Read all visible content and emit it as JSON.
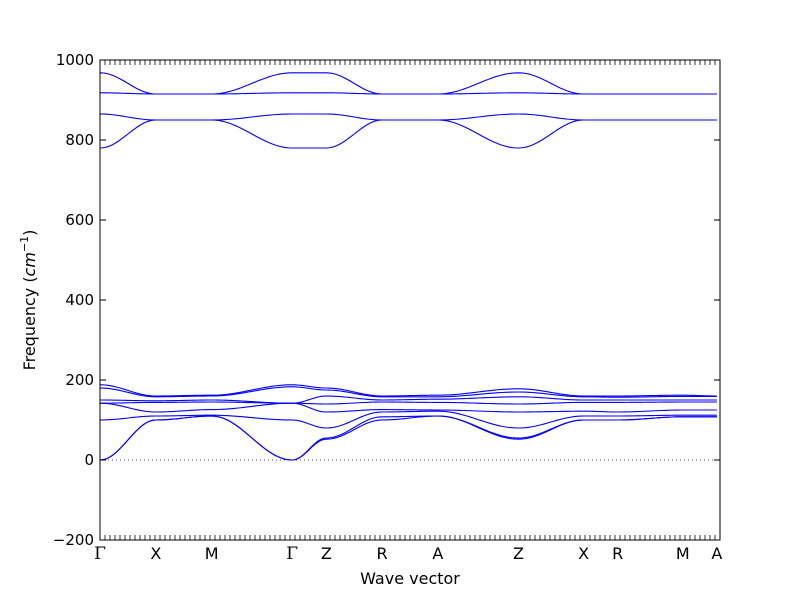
{
  "chart_data": {
    "type": "line",
    "title": "",
    "xlabel": "Wave vector",
    "ylabel": "Frequency",
    "ylabel_unit": "cm",
    "ylabel_unit_exponent": "−1",
    "ylim": [
      -200,
      1000
    ],
    "yticks": [
      "−200",
      "0",
      "200",
      "400",
      "600",
      "800",
      "1000"
    ],
    "ytick_values": [
      -200,
      0,
      200,
      400,
      600,
      800,
      1000
    ],
    "xlim": [
      0,
      3.0
    ],
    "kpoints": [
      {
        "label": "Γ",
        "x": 0.0
      },
      {
        "label": "X",
        "x": 0.18
      },
      {
        "label": "M",
        "x": 0.36
      },
      {
        "label": "Γ",
        "x": 0.62
      },
      {
        "label": "Z",
        "x": 0.73
      },
      {
        "label": "R",
        "x": 0.91
      },
      {
        "label": "A",
        "x": 1.09
      },
      {
        "label": "Z",
        "x": 1.35
      },
      {
        "label": "X",
        "x": 1.56
      },
      {
        "label": "R",
        "x": 1.67
      },
      {
        "label": "M",
        "x": 1.88
      },
      {
        "label": "A",
        "x": 1.99
      }
    ],
    "zero_line": 0,
    "grid": false,
    "series": [
      {
        "x": [
          0,
          0.18,
          0.36,
          0.62,
          0.73,
          0.91,
          1.09,
          1.35,
          1.56,
          1.67,
          1.88,
          1.99
        ],
        "values": [
          780,
          850,
          850,
          780,
          780,
          850,
          850,
          780,
          850,
          850,
          850,
          850
        ]
      },
      {
        "x": [
          0,
          0.18,
          0.36,
          0.62,
          0.73,
          0.91,
          1.09,
          1.35,
          1.56,
          1.67,
          1.88,
          1.99
        ],
        "values": [
          865,
          850,
          850,
          865,
          865,
          850,
          850,
          865,
          850,
          850,
          850,
          850
        ]
      },
      {
        "x": [
          0,
          0.18,
          0.36,
          0.62,
          0.73,
          0.91,
          1.09,
          1.35,
          1.56,
          1.67,
          1.88,
          1.99
        ],
        "values": [
          918,
          915,
          915,
          918,
          918,
          915,
          915,
          918,
          915,
          915,
          915,
          915
        ]
      },
      {
        "x": [
          0,
          0.18,
          0.36,
          0.62,
          0.73,
          0.91,
          1.09,
          1.35,
          1.56,
          1.67,
          1.88,
          1.99
        ],
        "values": [
          968,
          915,
          915,
          968,
          968,
          915,
          915,
          968,
          915,
          915,
          915,
          915
        ]
      },
      {
        "x": [
          0,
          0.18,
          0.36,
          0.62,
          0.73,
          0.91,
          1.09,
          1.35,
          1.56,
          1.67,
          1.88,
          1.99
        ],
        "values": [
          0,
          100,
          110,
          0,
          52,
          100,
          110,
          52,
          100,
          100,
          108,
          108
        ]
      },
      {
        "x": [
          0,
          0.18,
          0.36,
          0.62,
          0.73,
          0.91,
          1.09,
          1.35,
          1.56,
          1.67,
          1.88,
          1.99
        ],
        "values": [
          0,
          100,
          110,
          0,
          55,
          108,
          110,
          55,
          100,
          100,
          108,
          108
        ]
      },
      {
        "x": [
          0,
          0.18,
          0.36,
          0.62,
          0.73,
          0.91,
          1.09,
          1.35,
          1.56,
          1.67,
          1.88,
          1.99
        ],
        "values": [
          100,
          110,
          112,
          100,
          80,
          120,
          122,
          80,
          110,
          110,
          112,
          112
        ]
      },
      {
        "x": [
          0,
          0.18,
          0.36,
          0.62,
          0.73,
          0.91,
          1.09,
          1.35,
          1.56,
          1.67,
          1.88,
          1.99
        ],
        "values": [
          142,
          120,
          126,
          142,
          120,
          126,
          125,
          120,
          122,
          120,
          125,
          125
        ]
      },
      {
        "x": [
          0,
          0.18,
          0.36,
          0.62,
          0.73,
          0.91,
          1.09,
          1.35,
          1.56,
          1.67,
          1.88,
          1.99
        ],
        "values": [
          142,
          144,
          145,
          142,
          140,
          145,
          144,
          140,
          144,
          144,
          145,
          145
        ]
      },
      {
        "x": [
          0,
          0.18,
          0.36,
          0.62,
          0.73,
          0.91,
          1.09,
          1.35,
          1.56,
          1.67,
          1.88,
          1.99
        ],
        "values": [
          150,
          148,
          150,
          142,
          160,
          150,
          152,
          158,
          150,
          150,
          150,
          150
        ]
      },
      {
        "x": [
          0,
          0.18,
          0.36,
          0.62,
          0.73,
          0.91,
          1.09,
          1.35,
          1.56,
          1.67,
          1.88,
          1.99
        ],
        "values": [
          180,
          158,
          160,
          183,
          175,
          158,
          158,
          170,
          158,
          157,
          159,
          159
        ]
      },
      {
        "x": [
          0,
          0.18,
          0.36,
          0.62,
          0.73,
          0.91,
          1.09,
          1.35,
          1.56,
          1.67,
          1.88,
          1.99
        ],
        "values": [
          188,
          160,
          162,
          188,
          180,
          160,
          162,
          178,
          160,
          160,
          162,
          160
        ]
      }
    ]
  }
}
